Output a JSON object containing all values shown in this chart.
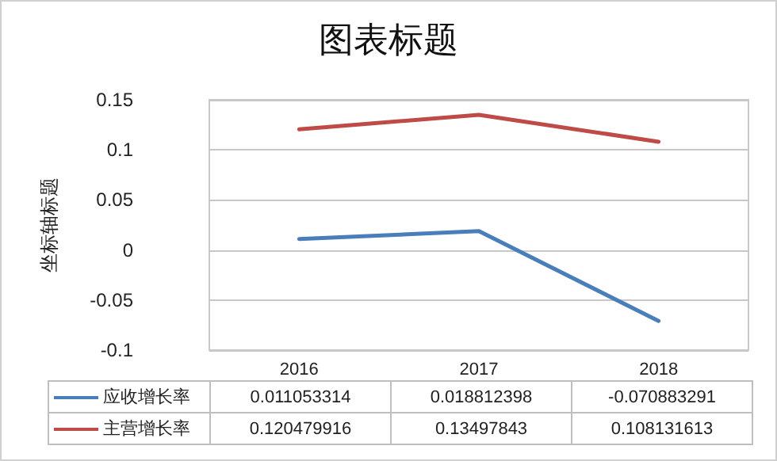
{
  "chart_data": {
    "type": "line",
    "title": "图表标题",
    "ylabel": "坐标轴标题",
    "categories": [
      "2016",
      "2017",
      "2018"
    ],
    "series": [
      {
        "name": "应收增长率",
        "color": "#4a7ebb",
        "values": [
          0.011053314,
          0.018812398,
          -0.070883291
        ]
      },
      {
        "name": "主营增长率",
        "color": "#be4b48",
        "values": [
          0.120479916,
          0.13497843,
          0.108131613
        ]
      }
    ],
    "ylim": [
      -0.1,
      0.15
    ],
    "yticks": [
      -0.1,
      -0.05,
      0,
      0.05,
      0.1,
      0.15
    ],
    "grid": "y",
    "legend": "bottom left",
    "data_labels": true,
    "marker": "none",
    "line_style": "solid"
  }
}
